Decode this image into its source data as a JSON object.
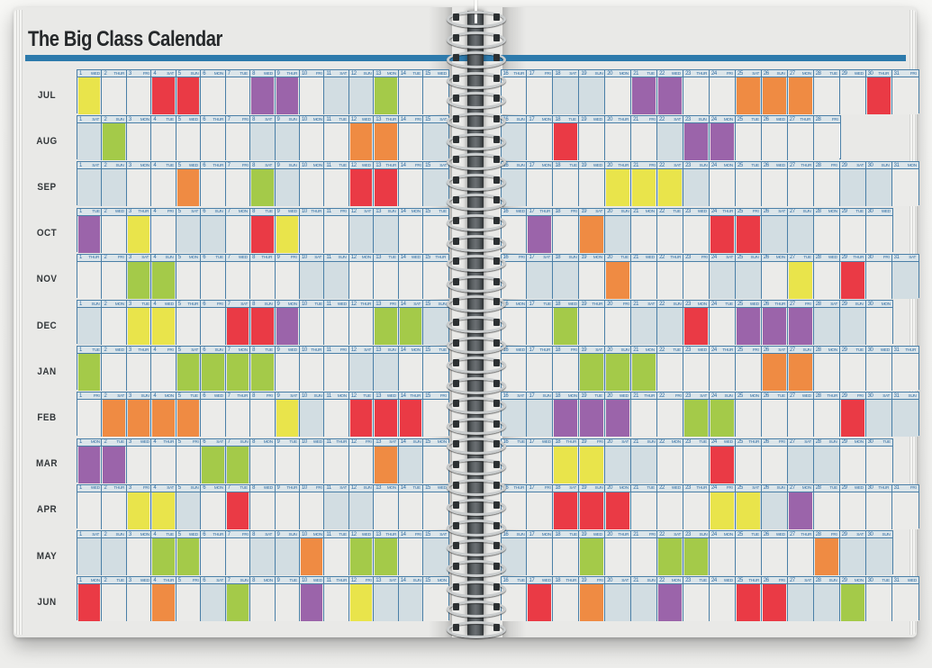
{
  "title": "The Big Class Calendar",
  "weekday_names": [
    "MON",
    "TUE",
    "WED",
    "THUR",
    "FRI",
    "SAT",
    "SUN"
  ],
  "weekend_days": [
    "SAT",
    "SUN"
  ],
  "palette": {
    "yellow": "#e9e44b",
    "red": "#ea3a45",
    "purple": "#9b64aa",
    "green": "#a4ca49",
    "orange": "#ef8b43",
    "weekday_cell": "#ebebe9",
    "weekend_cell": "#d2dde2",
    "header_bg": "#dbe5ea",
    "grid_line": "#4a7fa7",
    "header_text": "#2f6da3",
    "title_bar": "#2d7aac",
    "page": "#e9e9e7",
    "month_label": "#34383b"
  },
  "layout": {
    "left_page_last_day": 15,
    "right_page_first_day": 16
  },
  "months": [
    {
      "label": "JUL",
      "start_weekday": "WED",
      "num_days": 31,
      "colored": {
        "1": "yellow",
        "4": "red",
        "5": "red",
        "8": "purple",
        "9": "purple",
        "13": "green",
        "21": "purple",
        "22": "purple",
        "25": "orange",
        "26": "orange",
        "27": "orange",
        "30": "red"
      }
    },
    {
      "label": "AUG",
      "start_weekday": "SAT",
      "num_days": 28,
      "colored": {
        "2": "green",
        "12": "orange",
        "13": "orange",
        "18": "red",
        "23": "purple",
        "24": "purple"
      }
    },
    {
      "label": "SEP",
      "start_weekday": "SAT",
      "num_days": 31,
      "colored": {
        "5": "orange",
        "8": "green",
        "12": "red",
        "13": "red",
        "20": "yellow",
        "21": "yellow",
        "22": "yellow"
      }
    },
    {
      "label": "OCT",
      "start_weekday": "TUE",
      "num_days": 30,
      "colored": {
        "1": "purple",
        "3": "yellow",
        "8": "red",
        "9": "yellow",
        "17": "purple",
        "19": "orange",
        "24": "red",
        "25": "red"
      }
    },
    {
      "label": "NOV",
      "start_weekday": "THUR",
      "num_days": 31,
      "colored": {
        "3": "green",
        "4": "green",
        "20": "orange",
        "27": "yellow",
        "29": "red"
      }
    },
    {
      "label": "DEC",
      "start_weekday": "SUN",
      "num_days": 30,
      "colored": {
        "3": "yellow",
        "4": "yellow",
        "7": "red",
        "8": "red",
        "9": "purple",
        "13": "green",
        "14": "green",
        "18": "green",
        "23": "red",
        "25": "purple",
        "26": "purple",
        "27": "purple"
      }
    },
    {
      "label": "JAN",
      "start_weekday": "TUE",
      "num_days": 31,
      "colored": {
        "1": "green",
        "5": "green",
        "6": "green",
        "7": "green",
        "8": "green",
        "19": "green",
        "20": "green",
        "21": "green",
        "26": "orange",
        "27": "orange"
      }
    },
    {
      "label": "FEB",
      "start_weekday": "FRI",
      "num_days": 31,
      "colored": {
        "2": "orange",
        "3": "orange",
        "4": "orange",
        "5": "orange",
        "9": "yellow",
        "12": "red",
        "13": "red",
        "14": "red",
        "18": "purple",
        "19": "purple",
        "20": "purple",
        "23": "green",
        "24": "green",
        "29": "red"
      }
    },
    {
      "label": "MAR",
      "start_weekday": "MON",
      "num_days": 30,
      "colored": {
        "1": "purple",
        "2": "purple",
        "6": "green",
        "7": "green",
        "13": "orange",
        "18": "yellow",
        "19": "yellow",
        "24": "red"
      }
    },
    {
      "label": "APR",
      "start_weekday": "WED",
      "num_days": 31,
      "colored": {
        "3": "yellow",
        "4": "yellow",
        "7": "red",
        "18": "red",
        "19": "red",
        "20": "red",
        "24": "yellow",
        "25": "yellow",
        "27": "purple"
      }
    },
    {
      "label": "MAY",
      "start_weekday": "SAT",
      "num_days": 30,
      "colored": {
        "4": "green",
        "5": "green",
        "10": "orange",
        "12": "green",
        "13": "green",
        "19": "green",
        "22": "green",
        "23": "green",
        "28": "orange"
      }
    },
    {
      "label": "JUN",
      "start_weekday": "MON",
      "num_days": 31,
      "colored": {
        "1": "red",
        "4": "orange",
        "7": "green",
        "10": "purple",
        "12": "yellow",
        "17": "red",
        "19": "orange",
        "22": "purple",
        "25": "red",
        "26": "red",
        "29": "green"
      }
    }
  ]
}
